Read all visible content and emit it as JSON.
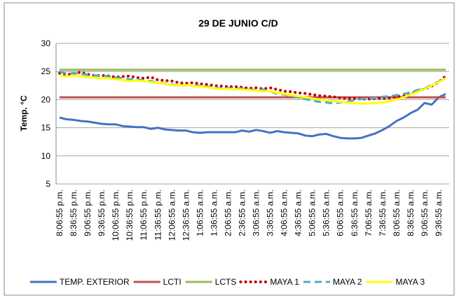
{
  "chart_data": {
    "type": "line",
    "title": "29 DE JUNIO C/D",
    "y_label": "Temp. °C",
    "categories": [
      "8:06:55 p.m.",
      null,
      "8:36:55 p.m.",
      null,
      "9:06:55 p.m.",
      null,
      "9:36:55 p.m.",
      null,
      "10:06:55 p.m.",
      null,
      "10:36:55 p.m.",
      null,
      "11:06:55 p.m.",
      null,
      "11:36:55 p.m.",
      null,
      "12:06:55 a.m.",
      null,
      "12:36:55 a.m.",
      null,
      "1:06:55 a.m.",
      null,
      "1:36:55 a.m.",
      null,
      "2:06:55 a.m.",
      null,
      "2:36:55 a.m.",
      null,
      "3:06:55 a.m.",
      null,
      "3:36:55 a.m.",
      null,
      "4:06:55 a.m.",
      null,
      "4:36:55 a.m.",
      null,
      "5:06:55 a.m.",
      null,
      "5:36:55 a.m.",
      null,
      "6:06:55 a.m.",
      null,
      "6:36:55 a.m.",
      null,
      "7:06:55 a.m.",
      null,
      "7:36:55 a.m.",
      null,
      "8:06:55 a.m.",
      null,
      "8:36:55 a.m.",
      null,
      "9:06:55 a.m.",
      null,
      "9:36:55 a.m.",
      null
    ],
    "series": [
      {
        "name": "TEMP. EXTERIOR",
        "color": "#4472c4",
        "style": "solid",
        "values": [
          16.8,
          16.5,
          16.4,
          16.2,
          16.1,
          15.9,
          15.7,
          15.6,
          15.6,
          15.3,
          15.2,
          15.1,
          15.1,
          14.8,
          15.0,
          14.7,
          14.6,
          14.5,
          14.5,
          14.2,
          14.1,
          14.2,
          14.2,
          14.2,
          14.2,
          14.2,
          14.5,
          14.3,
          14.6,
          14.4,
          14.1,
          14.4,
          14.2,
          14.1,
          14.0,
          13.6,
          13.5,
          13.8,
          13.9,
          13.5,
          13.2,
          13.1,
          13.1,
          13.2,
          13.6,
          14.0,
          14.6,
          15.3,
          16.2,
          16.8,
          17.6,
          18.2,
          19.4,
          19.1,
          20.4,
          21.0
        ]
      },
      {
        "name": "LCTI",
        "color": "#c0504d",
        "style": "solid",
        "values": [
          20.4,
          20.4,
          20.4,
          20.4,
          20.4,
          20.4,
          20.4,
          20.4,
          20.4,
          20.4,
          20.4,
          20.4,
          20.4,
          20.4,
          20.4,
          20.4,
          20.4,
          20.4,
          20.4,
          20.4,
          20.4,
          20.4,
          20.4,
          20.4,
          20.4,
          20.4,
          20.4,
          20.4,
          20.4,
          20.4,
          20.4,
          20.4,
          20.4,
          20.4,
          20.4,
          20.4,
          20.4,
          20.4,
          20.4,
          20.4,
          20.4,
          20.4,
          20.4,
          20.4,
          20.4,
          20.4,
          20.4,
          20.4,
          20.4,
          20.4,
          20.4,
          20.4,
          20.4,
          20.4,
          20.4,
          20.4
        ]
      },
      {
        "name": "LCTS",
        "color": "#9bbb59",
        "style": "solid",
        "values": [
          25.3,
          25.3,
          25.3,
          25.3,
          25.3,
          25.3,
          25.3,
          25.3,
          25.3,
          25.3,
          25.3,
          25.3,
          25.3,
          25.3,
          25.3,
          25.3,
          25.3,
          25.3,
          25.3,
          25.3,
          25.3,
          25.3,
          25.3,
          25.3,
          25.3,
          25.3,
          25.3,
          25.3,
          25.3,
          25.3,
          25.3,
          25.3,
          25.3,
          25.3,
          25.3,
          25.3,
          25.3,
          25.3,
          25.3,
          25.3,
          25.3,
          25.3,
          25.3,
          25.3,
          25.3,
          25.3,
          25.3,
          25.3,
          25.3,
          25.3,
          25.3,
          25.3,
          25.3,
          25.3,
          25.3,
          25.3
        ]
      },
      {
        "name": "MAYA 1",
        "color": "#c00000",
        "style": "dotted",
        "values": [
          24.7,
          24.4,
          24.6,
          24.9,
          24.5,
          24.3,
          24.3,
          24.2,
          24.0,
          24.1,
          24.2,
          23.9,
          23.8,
          24.0,
          23.5,
          23.4,
          23.3,
          23.0,
          22.9,
          23.0,
          22.8,
          22.7,
          22.5,
          22.4,
          22.3,
          22.3,
          22.2,
          22.0,
          22.1,
          21.9,
          22.1,
          21.8,
          21.5,
          21.4,
          21.2,
          21.1,
          20.9,
          20.7,
          20.6,
          20.5,
          20.3,
          20.2,
          20.2,
          20.1,
          20.1,
          20.2,
          20.2,
          20.3,
          20.5,
          20.7,
          21.0,
          21.5,
          21.9,
          22.4,
          23.1,
          24.2
        ]
      },
      {
        "name": "MAYA 2",
        "color": "#4bacc6",
        "style": "dashed",
        "values": [
          25.0,
          24.6,
          24.7,
          24.6,
          24.4,
          24.3,
          24.3,
          24.1,
          23.9,
          23.8,
          23.6,
          23.6,
          23.4,
          23.3,
          23.0,
          22.9,
          22.7,
          22.5,
          22.6,
          22.4,
          22.5,
          22.3,
          22.2,
          22.0,
          22.1,
          21.9,
          22.0,
          21.8,
          21.7,
          21.8,
          21.5,
          21.0,
          20.9,
          20.6,
          20.4,
          20.1,
          19.8,
          19.6,
          19.5,
          19.3,
          19.5,
          19.7,
          19.9,
          20.1,
          20.2,
          20.3,
          20.5,
          20.6,
          20.8,
          21.0,
          21.3,
          21.7,
          22.0,
          22.6,
          23.2,
          23.9
        ]
      },
      {
        "name": "MAYA 3",
        "color": "#ffff00",
        "style": "solid",
        "values": [
          24.3,
          24.1,
          24.3,
          24.2,
          24.0,
          23.9,
          23.8,
          23.8,
          23.6,
          23.5,
          23.3,
          23.4,
          23.3,
          23.1,
          23.0,
          22.8,
          22.6,
          22.5,
          22.6,
          22.4,
          22.3,
          22.2,
          22.0,
          21.9,
          21.9,
          21.8,
          21.8,
          21.7,
          21.6,
          21.5,
          21.5,
          21.2,
          21.0,
          20.8,
          20.6,
          20.4,
          20.2,
          20.0,
          19.9,
          19.7,
          19.6,
          19.5,
          19.4,
          19.3,
          19.3,
          19.4,
          19.5,
          19.7,
          20.0,
          20.4,
          20.9,
          21.4,
          21.9,
          22.5,
          23.1,
          23.8
        ]
      }
    ],
    "ylim": [
      5,
      30
    ],
    "yticks": [
      5,
      10,
      15,
      20,
      25,
      30
    ],
    "grid": true,
    "legend": "bottom"
  }
}
